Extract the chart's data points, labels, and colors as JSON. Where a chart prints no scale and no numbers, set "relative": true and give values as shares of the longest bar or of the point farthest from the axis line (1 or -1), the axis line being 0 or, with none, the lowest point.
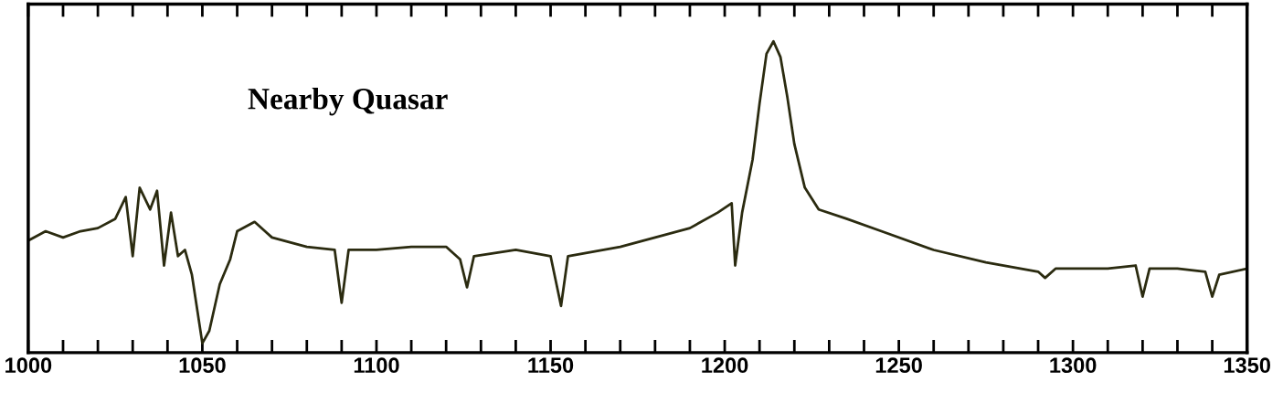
{
  "chart_data": {
    "type": "line",
    "relative": true,
    "annotations": [
      {
        "text": "Nearby Quasar"
      }
    ],
    "xlim": [
      1000,
      1350
    ],
    "xticks": [
      1000,
      {
        "value": 1010,
        "label": null
      },
      {
        "value": 1020,
        "label": null
      },
      {
        "value": 1030,
        "label": null
      },
      {
        "value": 1040,
        "label": null
      },
      1050,
      {
        "value": 1060,
        "label": null
      },
      {
        "value": 1070,
        "label": null
      },
      {
        "value": 1080,
        "label": null
      },
      {
        "value": 1090,
        "label": null
      },
      1100,
      {
        "value": 1110,
        "label": null
      },
      {
        "value": 1120,
        "label": null
      },
      {
        "value": 1130,
        "label": null
      },
      {
        "value": 1140,
        "label": null
      },
      1150,
      {
        "value": 1160,
        "label": null
      },
      {
        "value": 1170,
        "label": null
      },
      {
        "value": 1180,
        "label": null
      },
      {
        "value": 1190,
        "label": null
      },
      1200,
      {
        "value": 1210,
        "label": null
      },
      {
        "value": 1220,
        "label": null
      },
      {
        "value": 1230,
        "label": null
      },
      {
        "value": 1240,
        "label": null
      },
      1250,
      {
        "value": 1260,
        "label": null
      },
      {
        "value": 1270,
        "label": null
      },
      {
        "value": 1280,
        "label": null
      },
      {
        "value": 1290,
        "label": null
      },
      1300,
      {
        "value": 1310,
        "label": null
      },
      {
        "value": 1320,
        "label": null
      },
      {
        "value": 1330,
        "label": null
      },
      {
        "value": 1340,
        "label": null
      },
      1350
    ],
    "grid": false,
    "legend": false,
    "marker": "none",
    "line_style": "solid",
    "series": [
      {
        "color": "#2b2b10",
        "x": [
          1000,
          1005,
          1010,
          1015,
          1020,
          1025,
          1028,
          1030,
          1032,
          1035,
          1037,
          1039,
          1041,
          1043,
          1045,
          1047,
          1050,
          1052,
          1055,
          1058,
          1060,
          1065,
          1070,
          1080,
          1088,
          1090,
          1092,
          1100,
          1110,
          1120,
          1124,
          1126,
          1128,
          1140,
          1150,
          1153,
          1155,
          1170,
          1180,
          1190,
          1198,
          1202,
          1203,
          1205,
          1208,
          1210,
          1212,
          1214,
          1216,
          1218,
          1220,
          1223,
          1227,
          1235,
          1245,
          1260,
          1275,
          1290,
          1292,
          1295,
          1310,
          1318,
          1320,
          1322,
          1330,
          1338,
          1340,
          1342,
          1350
        ],
        "values": [
          0.36,
          0.39,
          0.37,
          0.39,
          0.4,
          0.43,
          0.5,
          0.31,
          0.53,
          0.46,
          0.52,
          0.28,
          0.45,
          0.31,
          0.33,
          0.25,
          0.03,
          0.07,
          0.22,
          0.3,
          0.39,
          0.42,
          0.37,
          0.34,
          0.33,
          0.16,
          0.33,
          0.33,
          0.34,
          0.34,
          0.3,
          0.21,
          0.31,
          0.33,
          0.31,
          0.15,
          0.31,
          0.34,
          0.37,
          0.4,
          0.45,
          0.48,
          0.28,
          0.45,
          0.62,
          0.8,
          0.96,
          1.0,
          0.95,
          0.82,
          0.67,
          0.53,
          0.46,
          0.43,
          0.39,
          0.33,
          0.29,
          0.26,
          0.24,
          0.27,
          0.27,
          0.28,
          0.18,
          0.27,
          0.27,
          0.26,
          0.18,
          0.25,
          0.27
        ]
      }
    ]
  }
}
